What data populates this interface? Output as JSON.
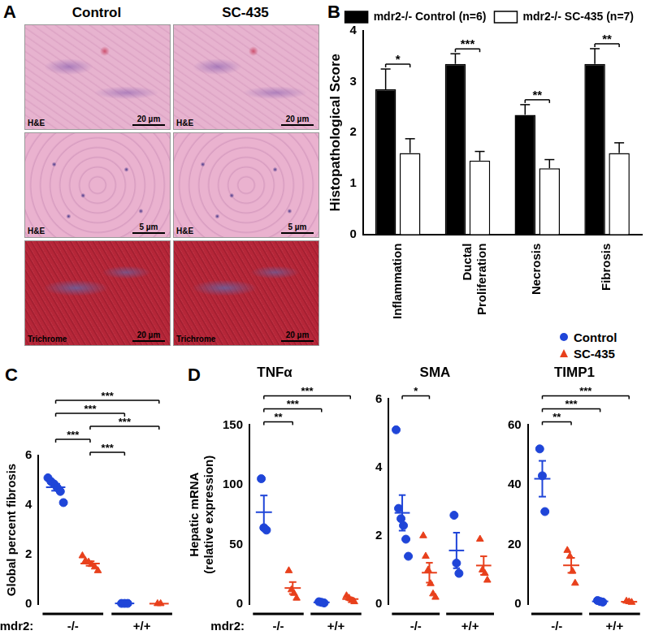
{
  "panel_a": {
    "panel": "A",
    "columns": [
      "Control",
      "SC-435"
    ],
    "rows": [
      {
        "stain": "H&E",
        "scale": "20 µm"
      },
      {
        "stain": "H&E",
        "scale": "5 µm"
      },
      {
        "stain": "Trichrome",
        "scale": "20 µm"
      }
    ]
  },
  "chart_data": [
    {
      "panel": "B",
      "type": "bar",
      "categories": [
        "Inflammation",
        "Ductal Proliferation",
        "Necrosis",
        "Fibrosis"
      ],
      "series": [
        {
          "name": "mdr2-/- Control (n=6)",
          "color": "#000000",
          "values": [
            2.85,
            3.35,
            2.35,
            3.35
          ],
          "error": [
            0.4,
            0.2,
            0.2,
            0.3
          ]
        },
        {
          "name": "mdr2-/- SC-435 (n=7)",
          "color": "#ffffff",
          "values": [
            1.6,
            1.45,
            1.3,
            1.6
          ],
          "error": [
            0.28,
            0.18,
            0.17,
            0.2
          ]
        }
      ],
      "significance": [
        "*",
        "***",
        "**",
        "**"
      ],
      "y_label": "Histopathological Score",
      "ylim": [
        0,
        4
      ],
      "yticks": [
        0,
        1,
        2,
        3,
        4
      ],
      "grid": false,
      "legend": "top right"
    },
    {
      "panel": "C",
      "type": "scatter",
      "categories": [
        null,
        null,
        null,
        null
      ],
      "genotype": [
        "-/-",
        "-/-",
        "+/+",
        "+/+"
      ],
      "genotype_label": "mdr2:",
      "series": [
        {
          "name": "Control",
          "color": "#1f45d8",
          "marker": "circle",
          "points": [
            [
              5.1,
              4.95,
              4.85,
              4.7,
              4.55,
              4.1
            ],
            [],
            [
              0.03,
              0.03,
              0.03
            ],
            []
          ],
          "mean": [
            4.72,
            null,
            0.03,
            null
          ],
          "sem": [
            0.14,
            null,
            0,
            null
          ]
        },
        {
          "name": "SC-435",
          "color": "#e8401c",
          "marker": "triangle",
          "points": [
            [],
            [
              1.95,
              1.75,
              1.7,
              1.6,
              1.5,
              1.35
            ],
            [],
            [
              0.02,
              0.02
            ]
          ],
          "mean": [
            null,
            1.64,
            null,
            0.02
          ],
          "sem": [
            null,
            0.09,
            null,
            0
          ]
        }
      ],
      "brackets": [
        {
          "from": 0,
          "to": 3,
          "label": "***"
        },
        {
          "from": 0,
          "to": 2,
          "label": "***"
        },
        {
          "from": 1,
          "to": 3,
          "label": "***"
        },
        {
          "from": 0,
          "to": 1,
          "label": "***"
        },
        {
          "from": 1,
          "to": 2,
          "label": "***"
        }
      ],
      "y_label": "Global percent fibrosis",
      "ylim": [
        0,
        6
      ],
      "yticks": [
        0,
        2,
        4,
        6
      ],
      "grid": false,
      "tick_labels": "y"
    },
    {
      "panel": "D",
      "type": "scatter",
      "title": "TNFα",
      "categories": [
        null,
        null,
        null,
        null
      ],
      "genotype": [
        "-/-",
        "-/-",
        "+/+",
        "+/+"
      ],
      "genotype_label": "mdr2:",
      "series": [
        {
          "name": "Control",
          "color": "#1f45d8",
          "marker": "circle",
          "points": [
            [
              105,
              64,
              62
            ],
            [],
            [
              2,
              1.5,
              1
            ],
            []
          ],
          "mean": [
            77,
            null,
            1.5,
            null
          ],
          "sem": [
            14,
            null,
            0.3,
            null
          ]
        },
        {
          "name": "SC-435",
          "color": "#e8401c",
          "marker": "triangle",
          "points": [
            [],
            [
              28,
              12,
              9,
              5
            ],
            [],
            [
              7,
              5,
              3,
              2
            ]
          ],
          "mean": [
            null,
            13.5,
            null,
            4.25
          ],
          "sem": [
            null,
            5,
            null,
            1.1
          ]
        }
      ],
      "brackets": [
        {
          "from": 0,
          "to": 3,
          "label": "***"
        },
        {
          "from": 0,
          "to": 2,
          "label": "***"
        },
        {
          "from": 0,
          "to": 1,
          "label": "**"
        }
      ],
      "y_label": [
        "Hepatic mRNA",
        "(relative expression)"
      ],
      "ylim": [
        0,
        150
      ],
      "yticks": [
        0,
        50,
        100,
        150
      ],
      "grid": false,
      "tick_labels": "y"
    },
    {
      "type": "scatter",
      "title": "SMA",
      "categories": [
        null,
        null,
        null,
        null
      ],
      "genotype": [
        "-/-",
        "-/-",
        "+/+",
        "+/+"
      ],
      "series": [
        {
          "name": "Control",
          "color": "#1f45d8",
          "marker": "circle",
          "points": [
            [
              5.1,
              2.8,
              2.5,
              2.3,
              1.9,
              1.4
            ],
            [],
            [
              2.6,
              1.2,
              0.9
            ],
            []
          ],
          "mean": [
            2.67,
            null,
            1.57,
            null
          ],
          "sem": [
            0.52,
            null,
            0.52,
            null
          ]
        },
        {
          "name": "SC-435",
          "color": "#e8401c",
          "marker": "triangle",
          "points": [
            [],
            [
              2.0,
              1.4,
              1.0,
              0.6,
              0.3,
              0.2
            ],
            [],
            [
              1.9,
              1.0,
              0.9,
              0.7
            ]
          ],
          "mean": [
            null,
            0.92,
            null,
            1.13
          ],
          "sem": [
            null,
            0.29,
            null,
            0.27
          ]
        }
      ],
      "brackets": [
        {
          "from": 0,
          "to": 1,
          "label": "*"
        }
      ],
      "ylim": [
        0,
        6
      ],
      "yticks": [
        0,
        2,
        4,
        6
      ],
      "grid": false,
      "tick_labels": "y"
    },
    {
      "type": "scatter",
      "title": "TIMP1",
      "categories": [
        null,
        null,
        null,
        null
      ],
      "genotype": [
        "-/-",
        "-/-",
        "+/+",
        "+/+"
      ],
      "series": [
        {
          "name": "Control",
          "color": "#1f45d8",
          "marker": "circle",
          "points": [
            [
              52,
              43,
              31
            ],
            [],
            [
              1.2,
              0.9,
              0.7
            ],
            []
          ],
          "mean": [
            42,
            null,
            0.93,
            null
          ],
          "sem": [
            6,
            null,
            0.15,
            null
          ]
        },
        {
          "name": "SC-435",
          "color": "#e8401c",
          "marker": "triangle",
          "points": [
            [],
            [
              18,
              16,
              11,
              7
            ],
            [],
            [
              1.0,
              0.8,
              0.6
            ]
          ],
          "mean": [
            null,
            13,
            null,
            0.8
          ],
          "sem": [
            null,
            2.5,
            null,
            0.12
          ]
        }
      ],
      "brackets": [
        {
          "from": 0,
          "to": 3,
          "label": "***"
        },
        {
          "from": 0,
          "to": 2,
          "label": "***"
        },
        {
          "from": 0,
          "to": 1,
          "label": "**"
        }
      ],
      "ylim": [
        0,
        60
      ],
      "yticks": [
        0,
        20,
        40,
        60
      ],
      "grid": false,
      "tick_labels": "y",
      "legend": "top right"
    }
  ]
}
